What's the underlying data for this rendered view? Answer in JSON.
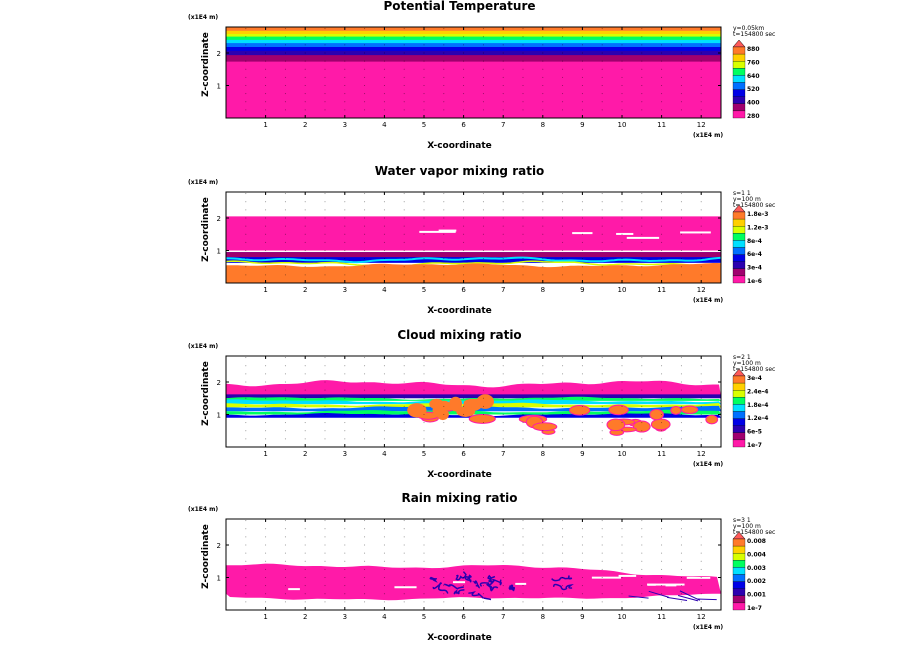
{
  "palette": [
    "#ff1aa8",
    "#a0006e",
    "#2b00b0",
    "#0000e6",
    "#0070ff",
    "#00e0ff",
    "#00ff60",
    "#d8ff00",
    "#ffd000",
    "#ff7a2a",
    "#ff5a5a"
  ],
  "chart_data": [
    {
      "type": "heatmap",
      "title": "Potential Temperature",
      "xlabel": "X-coordinate",
      "ylabel": "Z-coordinate",
      "x_unit": "(x1E4 m)",
      "y_unit": "(x1E4 m)",
      "xlim": [
        0,
        12.5
      ],
      "ylim": [
        0,
        2.8
      ],
      "xticks": [
        "1",
        "2",
        "3",
        "4",
        "5",
        "6",
        "7",
        "8",
        "9",
        "10",
        "11",
        "12"
      ],
      "yticks": [
        "1",
        "2"
      ],
      "info": [
        "y=0.05km",
        "t=154800 sec"
      ],
      "colorbar": [
        "880",
        "760",
        "640",
        "520",
        "400",
        "280"
      ],
      "field": "theta"
    },
    {
      "type": "heatmap",
      "title": "Water vapor mixing ratio",
      "xlabel": "X-coordinate",
      "ylabel": "Z-coordinate",
      "x_unit": "(x1E4 m)",
      "y_unit": "(x1E4 m)",
      "xlim": [
        0,
        12.5
      ],
      "ylim": [
        0,
        2.8
      ],
      "xticks": [
        "1",
        "2",
        "3",
        "4",
        "5",
        "6",
        "7",
        "8",
        "9",
        "10",
        "11",
        "12"
      ],
      "yticks": [
        "1",
        "2"
      ],
      "info": [
        "s=1 1",
        "y=100 m",
        "t=154800 sec"
      ],
      "colorbar": [
        "1.8e-3",
        "1.2e-3",
        "8e-4",
        "6e-4",
        "3e-4",
        "1e-6"
      ],
      "field": "vapor"
    },
    {
      "type": "heatmap",
      "title": "Cloud mixing ratio",
      "xlabel": "X-coordinate",
      "ylabel": "Z-coordinate",
      "x_unit": "(x1E4 m)",
      "y_unit": "(x1E4 m)",
      "xlim": [
        0,
        12.5
      ],
      "ylim": [
        0,
        2.8
      ],
      "xticks": [
        "1",
        "2",
        "3",
        "4",
        "5",
        "6",
        "7",
        "8",
        "9",
        "10",
        "11",
        "12"
      ],
      "yticks": [
        "1",
        "2"
      ],
      "info": [
        "s=2 1",
        "y=100 m",
        "t=154800 sec"
      ],
      "colorbar": [
        "3e-4",
        "2.4e-4",
        "1.8e-4",
        "1.2e-4",
        "6e-5",
        "1e-7"
      ],
      "field": "cloud"
    },
    {
      "type": "heatmap",
      "title": "Rain mixing ratio",
      "xlabel": "X-coordinate",
      "ylabel": "Z-coordinate",
      "x_unit": "(x1E4 m)",
      "y_unit": "(x1E4 m)",
      "xlim": [
        0,
        12.5
      ],
      "ylim": [
        0,
        2.8
      ],
      "xticks": [
        "1",
        "2",
        "3",
        "4",
        "5",
        "6",
        "7",
        "8",
        "9",
        "10",
        "11",
        "12"
      ],
      "yticks": [
        "1",
        "2"
      ],
      "info": [
        "s=3 1",
        "y=100 m",
        "t=154800 sec"
      ],
      "colorbar": [
        "0.008",
        "0.004",
        "0.003",
        "0.002",
        "0.001",
        "1e-7"
      ],
      "field": "rain"
    }
  ]
}
